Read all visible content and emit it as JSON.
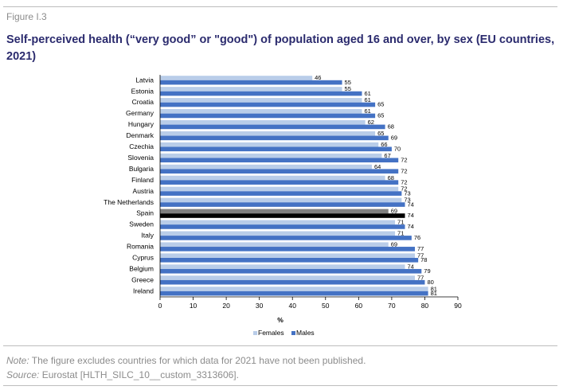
{
  "figure_label": "Figure I.3",
  "chart_data": {
    "type": "bar",
    "orientation": "horizontal",
    "title": "Self-perceived health (“very good” or \"good\") of population aged 16 and over, by sex (EU countries, 2021)",
    "xlabel": "%",
    "ylabel": "",
    "xlim": [
      0,
      90
    ],
    "xticks": [
      0,
      10,
      20,
      30,
      40,
      50,
      60,
      70,
      80,
      90
    ],
    "grid": false,
    "legend_position": "bottom",
    "categories": [
      "Latvia",
      "Estonia",
      "Croatia",
      "Germany",
      "Hungary",
      "Denmark",
      "Czechia",
      "Slovenia",
      "Bulgaria",
      "Finland",
      "Austria",
      "The Netherlands",
      "Spain",
      "Sweden",
      "Italy",
      "Romania",
      "Cyprus",
      "Belgium",
      "Greece",
      "Ireland"
    ],
    "highlight_category": "Spain",
    "series": [
      {
        "name": "Females",
        "color": "#b9cde9",
        "values": [
          46,
          55,
          61,
          61,
          62,
          65,
          66,
          67,
          64,
          68,
          72,
          73,
          69,
          71,
          71,
          69,
          77,
          74,
          77,
          81
        ]
      },
      {
        "name": "Males",
        "color": "#4472c4",
        "values": [
          55,
          61,
          65,
          65,
          68,
          69,
          70,
          72,
          72,
          72,
          73,
          74,
          74,
          74,
          76,
          77,
          78,
          79,
          80,
          81
        ]
      }
    ],
    "highlight_colors": {
      "Females": "#7f7f7f",
      "Males": "#000000"
    }
  },
  "footnote": {
    "note_label": "Note:",
    "note_text": " The figure excludes countries for which data for 2021 have not been published.",
    "source_label": "Source:",
    "source_text": " Eurostat [HLTH_SILC_10__custom_3313606]."
  }
}
